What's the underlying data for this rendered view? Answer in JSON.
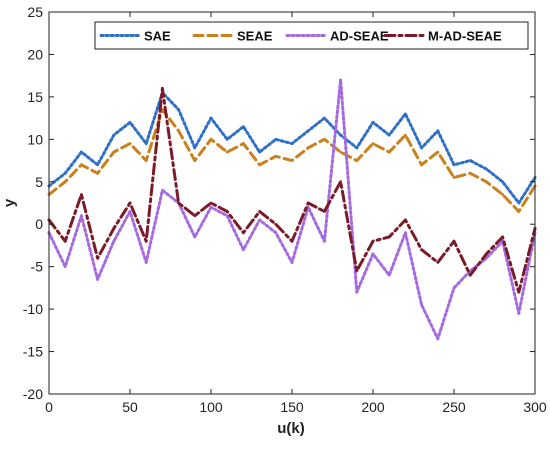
{
  "colors": {
    "SAE": "#2e6fc7",
    "SEAE": "#c9811e",
    "AD-SEAE": "#a66ae0",
    "M-AD-SEAE": "#7a1b2a",
    "axes": "#222222",
    "background": "#ffffff"
  },
  "chart_data": {
    "type": "line",
    "title": "",
    "xlabel": "u(k)",
    "ylabel": "y",
    "xlim": [
      0,
      300
    ],
    "ylim": [
      -20,
      25
    ],
    "xticks": [
      0,
      50,
      100,
      150,
      200,
      250,
      300
    ],
    "yticks": [
      -20,
      -15,
      -10,
      -5,
      0,
      5,
      10,
      15,
      20,
      25
    ],
    "grid": false,
    "legend_position": "top-right",
    "x": [
      0,
      10,
      20,
      30,
      40,
      50,
      60,
      70,
      80,
      90,
      100,
      110,
      120,
      130,
      140,
      150,
      160,
      170,
      180,
      190,
      200,
      210,
      220,
      230,
      240,
      250,
      260,
      270,
      280,
      290,
      300
    ],
    "series": [
      {
        "name": "SAE",
        "style": "dotted",
        "values": [
          4.5,
          6.0,
          8.5,
          7.0,
          10.5,
          12.0,
          9.5,
          15.5,
          13.5,
          9.0,
          12.5,
          10.0,
          11.5,
          8.5,
          10.0,
          9.5,
          11.0,
          12.5,
          10.5,
          9.0,
          12.0,
          10.5,
          13.0,
          9.0,
          11.0,
          7.0,
          7.5,
          6.5,
          5.0,
          2.5,
          5.5
        ]
      },
      {
        "name": "SEAE",
        "style": "dashed",
        "values": [
          3.5,
          5.0,
          7.0,
          6.0,
          8.5,
          9.5,
          7.5,
          13.5,
          11.0,
          7.5,
          10.0,
          8.5,
          9.5,
          7.0,
          8.0,
          7.5,
          9.0,
          10.0,
          8.5,
          7.5,
          9.5,
          8.5,
          10.5,
          7.0,
          8.5,
          5.5,
          6.0,
          5.0,
          3.5,
          1.5,
          4.5
        ]
      },
      {
        "name": "AD-SEAE",
        "style": "dotted",
        "values": [
          -1.0,
          -5.0,
          1.0,
          -6.5,
          -2.0,
          1.5,
          -4.5,
          4.0,
          2.5,
          -1.5,
          2.0,
          1.0,
          -3.0,
          0.5,
          -1.0,
          -4.5,
          2.0,
          -2.0,
          17.0,
          -8.0,
          -3.5,
          -6.0,
          -1.0,
          -9.5,
          -13.5,
          -7.5,
          -5.5,
          -4.0,
          -2.0,
          -10.5,
          -1.0
        ]
      },
      {
        "name": "M-AD-SEAE",
        "style": "dashdot",
        "values": [
          0.5,
          -2.0,
          3.5,
          -4.0,
          -0.5,
          2.5,
          -2.0,
          16.0,
          2.5,
          1.0,
          2.5,
          1.5,
          -1.0,
          1.5,
          0.0,
          -2.0,
          2.5,
          1.5,
          5.0,
          -5.5,
          -2.0,
          -1.5,
          0.5,
          -3.0,
          -4.5,
          -2.0,
          -6.0,
          -3.5,
          -1.5,
          -8.0,
          -0.5
        ]
      }
    ]
  }
}
